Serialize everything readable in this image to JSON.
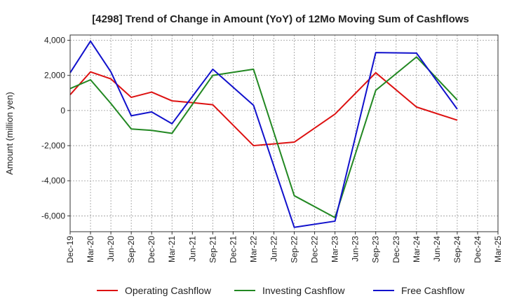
{
  "chart_data": {
    "type": "line",
    "title": "[4298]  Trend of Change in Amount (YoY) of 12Mo Moving Sum of Cashflows",
    "xlabel": "",
    "ylabel": "Amount (million yen)",
    "ylim": [
      -6900,
      4300
    ],
    "yticks": [
      4000,
      2000,
      0,
      -2000,
      -4000,
      -6000
    ],
    "ytick_labels": [
      "4,000",
      "2,000",
      "0",
      "-2,000",
      "-4,000",
      "-6,000"
    ],
    "categories": [
      "Dec-19",
      "Mar-20",
      "Jun-20",
      "Sep-20",
      "Dec-20",
      "Mar-21",
      "Jun-21",
      "Sep-21",
      "Dec-21",
      "Mar-22",
      "Jun-22",
      "Sep-22",
      "Dec-22",
      "Mar-23",
      "Jun-23",
      "Sep-23",
      "Dec-23",
      "Mar-24",
      "Jun-24",
      "Sep-24",
      "Dec-24",
      "Mar-25"
    ],
    "grid": true,
    "legend_position": "bottom",
    "series": [
      {
        "name": "Operating Cashflow",
        "color": "#dd1111",
        "values": [
          900,
          2200,
          1800,
          750,
          1050,
          550,
          450,
          330,
          null,
          -2000,
          null,
          -1800,
          null,
          -200,
          null,
          2150,
          null,
          200,
          null,
          -550,
          null,
          null
        ]
      },
      {
        "name": "Investing Cashflow",
        "color": "#228822",
        "values": [
          1250,
          1750,
          400,
          -1050,
          -1130,
          -1300,
          null,
          2000,
          null,
          2350,
          null,
          -4850,
          null,
          -6100,
          null,
          1150,
          null,
          3050,
          null,
          600,
          null,
          null
        ]
      },
      {
        "name": "Free Cashflow",
        "color": "#1111cc",
        "values": [
          2150,
          3950,
          2200,
          -300,
          -80,
          -750,
          null,
          2350,
          null,
          300,
          null,
          -6650,
          null,
          -6300,
          null,
          3300,
          null,
          3270,
          null,
          80,
          null,
          null
        ]
      }
    ]
  }
}
